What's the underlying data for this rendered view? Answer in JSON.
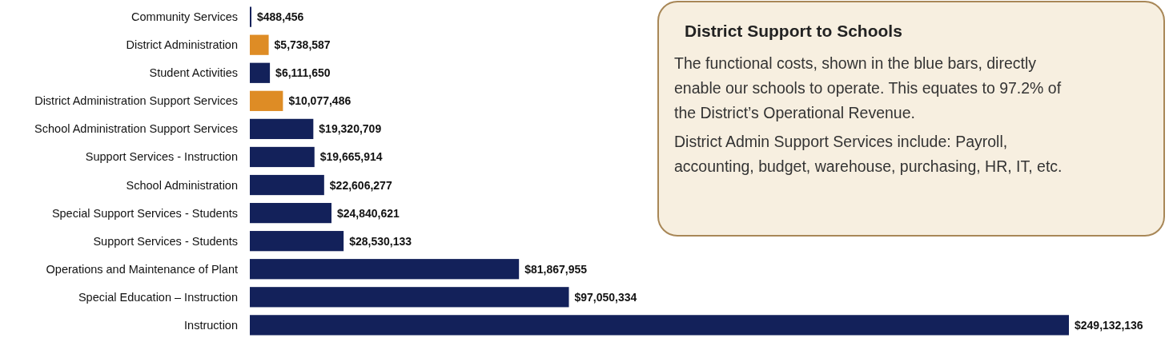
{
  "chart_data": {
    "type": "bar",
    "orientation": "horizontal",
    "categories": [
      "Community Services",
      "District Administration",
      "Student Activities",
      "District Administration Support Services",
      "School Administration Support Services",
      "Support Services - Instruction",
      "School Administration",
      "Special Support Services - Students",
      "Support Services - Students",
      "Operations and Maintenance of Plant",
      "Special Education – Instruction",
      "Instruction"
    ],
    "values": [
      488456,
      5738587,
      6111650,
      10077486,
      19320709,
      19665914,
      22606277,
      24840621,
      28530133,
      81867955,
      97050334,
      249132136
    ],
    "colors": [
      "#13215a",
      "#de8c25",
      "#13215a",
      "#de8c25",
      "#13215a",
      "#13215a",
      "#13215a",
      "#13215a",
      "#13215a",
      "#13215a",
      "#13215a",
      "#13215a"
    ],
    "value_labels": [
      "$488,456",
      "$5,738,587",
      "$6,111,650",
      "$10,077,486",
      "$19,320,709",
      "$19,665,914",
      "$22,606,277",
      "$24,840,621",
      "$28,530,133",
      "$81,867,955",
      "$97,050,334",
      "$249,132,136"
    ],
    "annotations": [
      "District Support to Schools",
      "The functional costs, shown in the blue bars, directly enable our schools to operate. This equates to 97.2% of the District’s Operational Revenue.",
      "District Admin Support Services include: Payroll, accounting, budget, warehouse, purchasing, HR, IT, etc."
    ]
  }
}
